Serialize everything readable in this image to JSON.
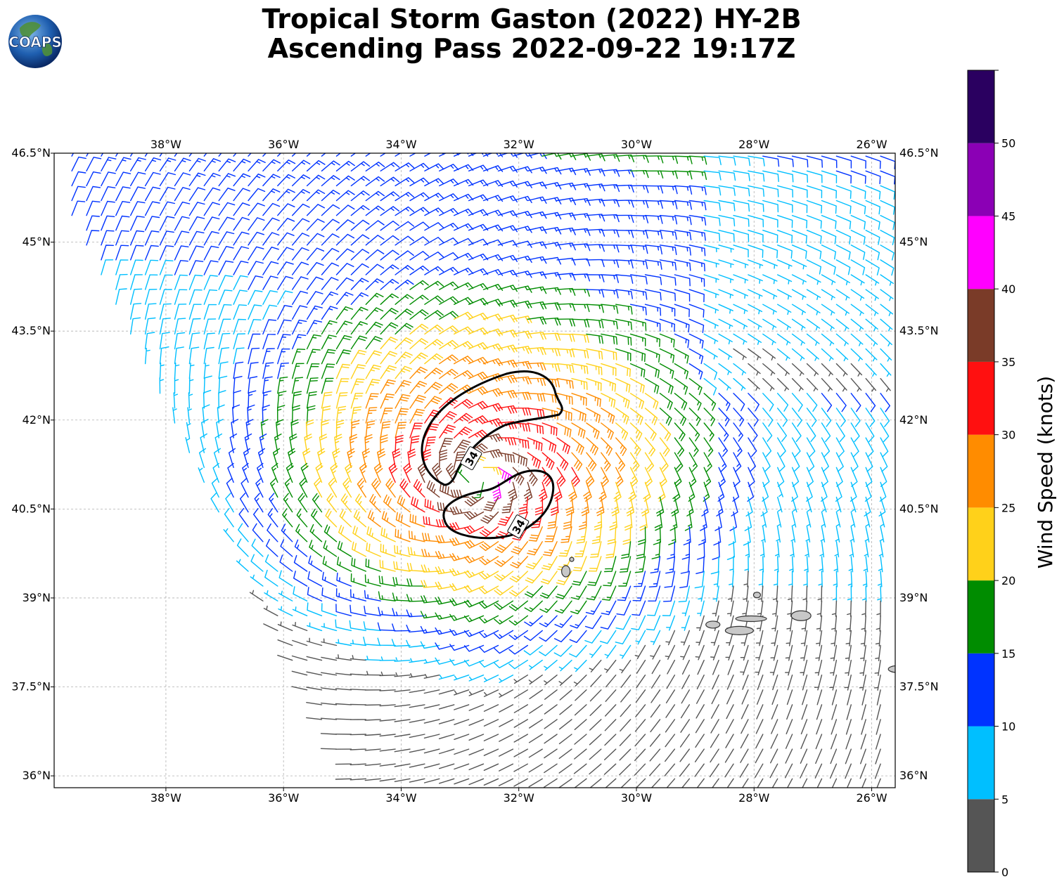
{
  "title": {
    "line1": "Tropical Storm Gaston (2022) HY-2B",
    "line2": "Ascending Pass 2022-09-22 19:17Z"
  },
  "logo": {
    "text": "COAPS",
    "icon": "globe-icon"
  },
  "map": {
    "lon_range": [
      -39.9,
      -25.6
    ],
    "lat_range": [
      35.8,
      46.5
    ],
    "lon_ticks": [
      {
        "value": -38,
        "label": "38°W"
      },
      {
        "value": -36,
        "label": "36°W"
      },
      {
        "value": -34,
        "label": "34°W"
      },
      {
        "value": -32,
        "label": "32°W"
      },
      {
        "value": -30,
        "label": "30°W"
      },
      {
        "value": -28,
        "label": "28°W"
      },
      {
        "value": -26,
        "label": "26°W"
      }
    ],
    "lat_ticks": [
      {
        "value": 46.5,
        "label": "46.5°N"
      },
      {
        "value": 45,
        "label": "45°N"
      },
      {
        "value": 43.5,
        "label": "43.5°N"
      },
      {
        "value": 42,
        "label": "42°N"
      },
      {
        "value": 40.5,
        "label": "40.5°N"
      },
      {
        "value": 39,
        "label": "39°N"
      },
      {
        "value": 37.5,
        "label": "37.5°N"
      },
      {
        "value": 36,
        "label": "36°N"
      }
    ],
    "gridlines": true,
    "storm_center": {
      "lon": -32.7,
      "lat": 41.0
    },
    "contour_label": "34",
    "contour_label_positions": [
      {
        "lon": -32.8,
        "lat": 41.35
      },
      {
        "lon": -32.0,
        "lat": 40.2
      }
    ],
    "islands": [
      {
        "name": "Flores",
        "lon": -31.2,
        "lat": 39.45
      },
      {
        "name": "Faial",
        "lon": -28.7,
        "lat": 38.55
      },
      {
        "name": "Pico",
        "lon": -28.25,
        "lat": 38.45
      },
      {
        "name": "Sao Jorge",
        "lon": -28.0,
        "lat": 38.65
      },
      {
        "name": "Terceira",
        "lon": -27.2,
        "lat": 38.7
      },
      {
        "name": "Graciosa",
        "lon": -27.95,
        "lat": 39.05
      },
      {
        "name": "Sao Miguel",
        "lon": -25.5,
        "lat": 37.8
      }
    ]
  },
  "colorbar": {
    "label": "Wind Speed (knots)",
    "ticks": [
      "0",
      "5",
      "10",
      "15",
      "20",
      "25",
      "30",
      "35",
      "40",
      "45",
      "50"
    ],
    "bins": [
      {
        "min": 0,
        "max": 5,
        "color": "#555555"
      },
      {
        "min": 5,
        "max": 10,
        "color": "#00bfff"
      },
      {
        "min": 10,
        "max": 15,
        "color": "#0033ff"
      },
      {
        "min": 15,
        "max": 20,
        "color": "#008c00"
      },
      {
        "min": 20,
        "max": 25,
        "color": "#ffd11a"
      },
      {
        "min": 25,
        "max": 30,
        "color": "#ff8c00"
      },
      {
        "min": 30,
        "max": 35,
        "color": "#ff1010"
      },
      {
        "min": 35,
        "max": 40,
        "color": "#7a3b28"
      },
      {
        "min": 40,
        "max": 45,
        "color": "#ff00ff"
      },
      {
        "min": 45,
        "max": 50,
        "color": "#8b00b5"
      },
      {
        "min": 50,
        "max": 55,
        "color": "#2a0060"
      }
    ]
  }
}
